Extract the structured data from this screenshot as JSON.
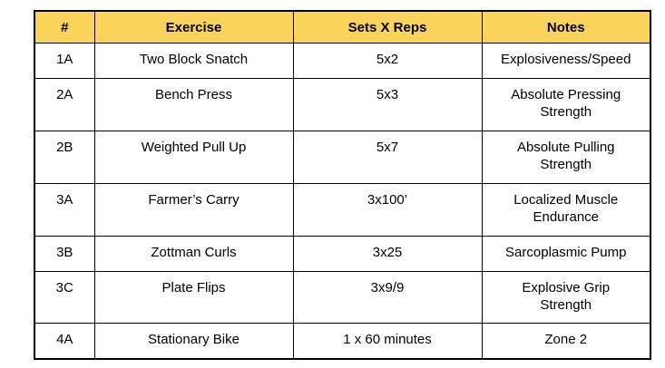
{
  "colors": {
    "header_bg": "#F9D35C",
    "border": "#000000",
    "text": "#000000",
    "row_bg": "#FFFFFF"
  },
  "table": {
    "headers": [
      "#",
      "Exercise",
      "Sets X Reps",
      "Notes"
    ],
    "rows": [
      {
        "num": "1A",
        "exercise": "Two Block Snatch",
        "sets_reps": "5x2",
        "notes": "Explosiveness/Speed"
      },
      {
        "num": "2A",
        "exercise": "Bench Press",
        "sets_reps": "5x3",
        "notes": "Absolute Pressing\nStrength"
      },
      {
        "num": "2B",
        "exercise": "Weighted Pull Up",
        "sets_reps": "5x7",
        "notes": "Absolute Pulling\nStrength"
      },
      {
        "num": "3A",
        "exercise": "Farmer’s Carry",
        "sets_reps": "3x100’",
        "notes": "Localized Muscle\nEndurance"
      },
      {
        "num": "3B",
        "exercise": "Zottman Curls",
        "sets_reps": "3x25",
        "notes": "Sarcoplasmic Pump"
      },
      {
        "num": "3C",
        "exercise": "Plate Flips",
        "sets_reps": "3x9/9",
        "notes": "Explosive Grip\nStrength"
      },
      {
        "num": "4A",
        "exercise": "Stationary Bike",
        "sets_reps": "1 x 60 minutes",
        "notes": "Zone 2"
      }
    ]
  }
}
